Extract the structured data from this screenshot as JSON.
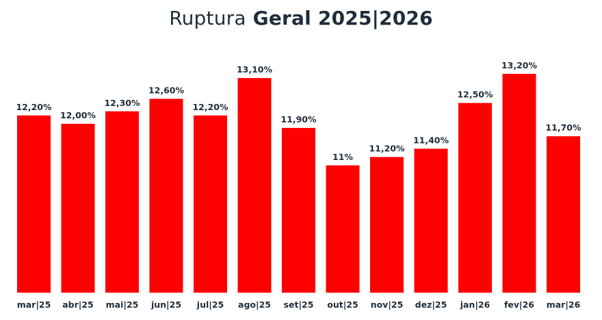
{
  "header": {
    "title_light": "Ruptura",
    "title_bold": "Geral 2025|2026"
  },
  "chart_data": {
    "type": "bar",
    "title": "Ruptura Geral 2025|2026",
    "xlabel": "",
    "ylabel": "",
    "categories": [
      "mar|25",
      "abr|25",
      "mai|25",
      "jun|25",
      "jul|25",
      "ago|25",
      "set|25",
      "out|25",
      "nov|25",
      "dez|25",
      "jan|26",
      "fev|26",
      "mar|26"
    ],
    "values": [
      12.2,
      12.0,
      12.3,
      12.6,
      12.2,
      13.1,
      11.9,
      11.0,
      11.2,
      11.4,
      12.5,
      13.2,
      11.7
    ],
    "data_labels": [
      "12,20%",
      "12,00%",
      "12,30%",
      "12,60%",
      "12,20%",
      "13,10%",
      "11,90%",
      "11%",
      "11,20%",
      "11,40%",
      "12,50%",
      "13,20%",
      "11,70%"
    ],
    "unit": "%",
    "grid": false,
    "legend": "none",
    "bar_color": "#ff0000",
    "text_color": "#1f2d3a"
  }
}
